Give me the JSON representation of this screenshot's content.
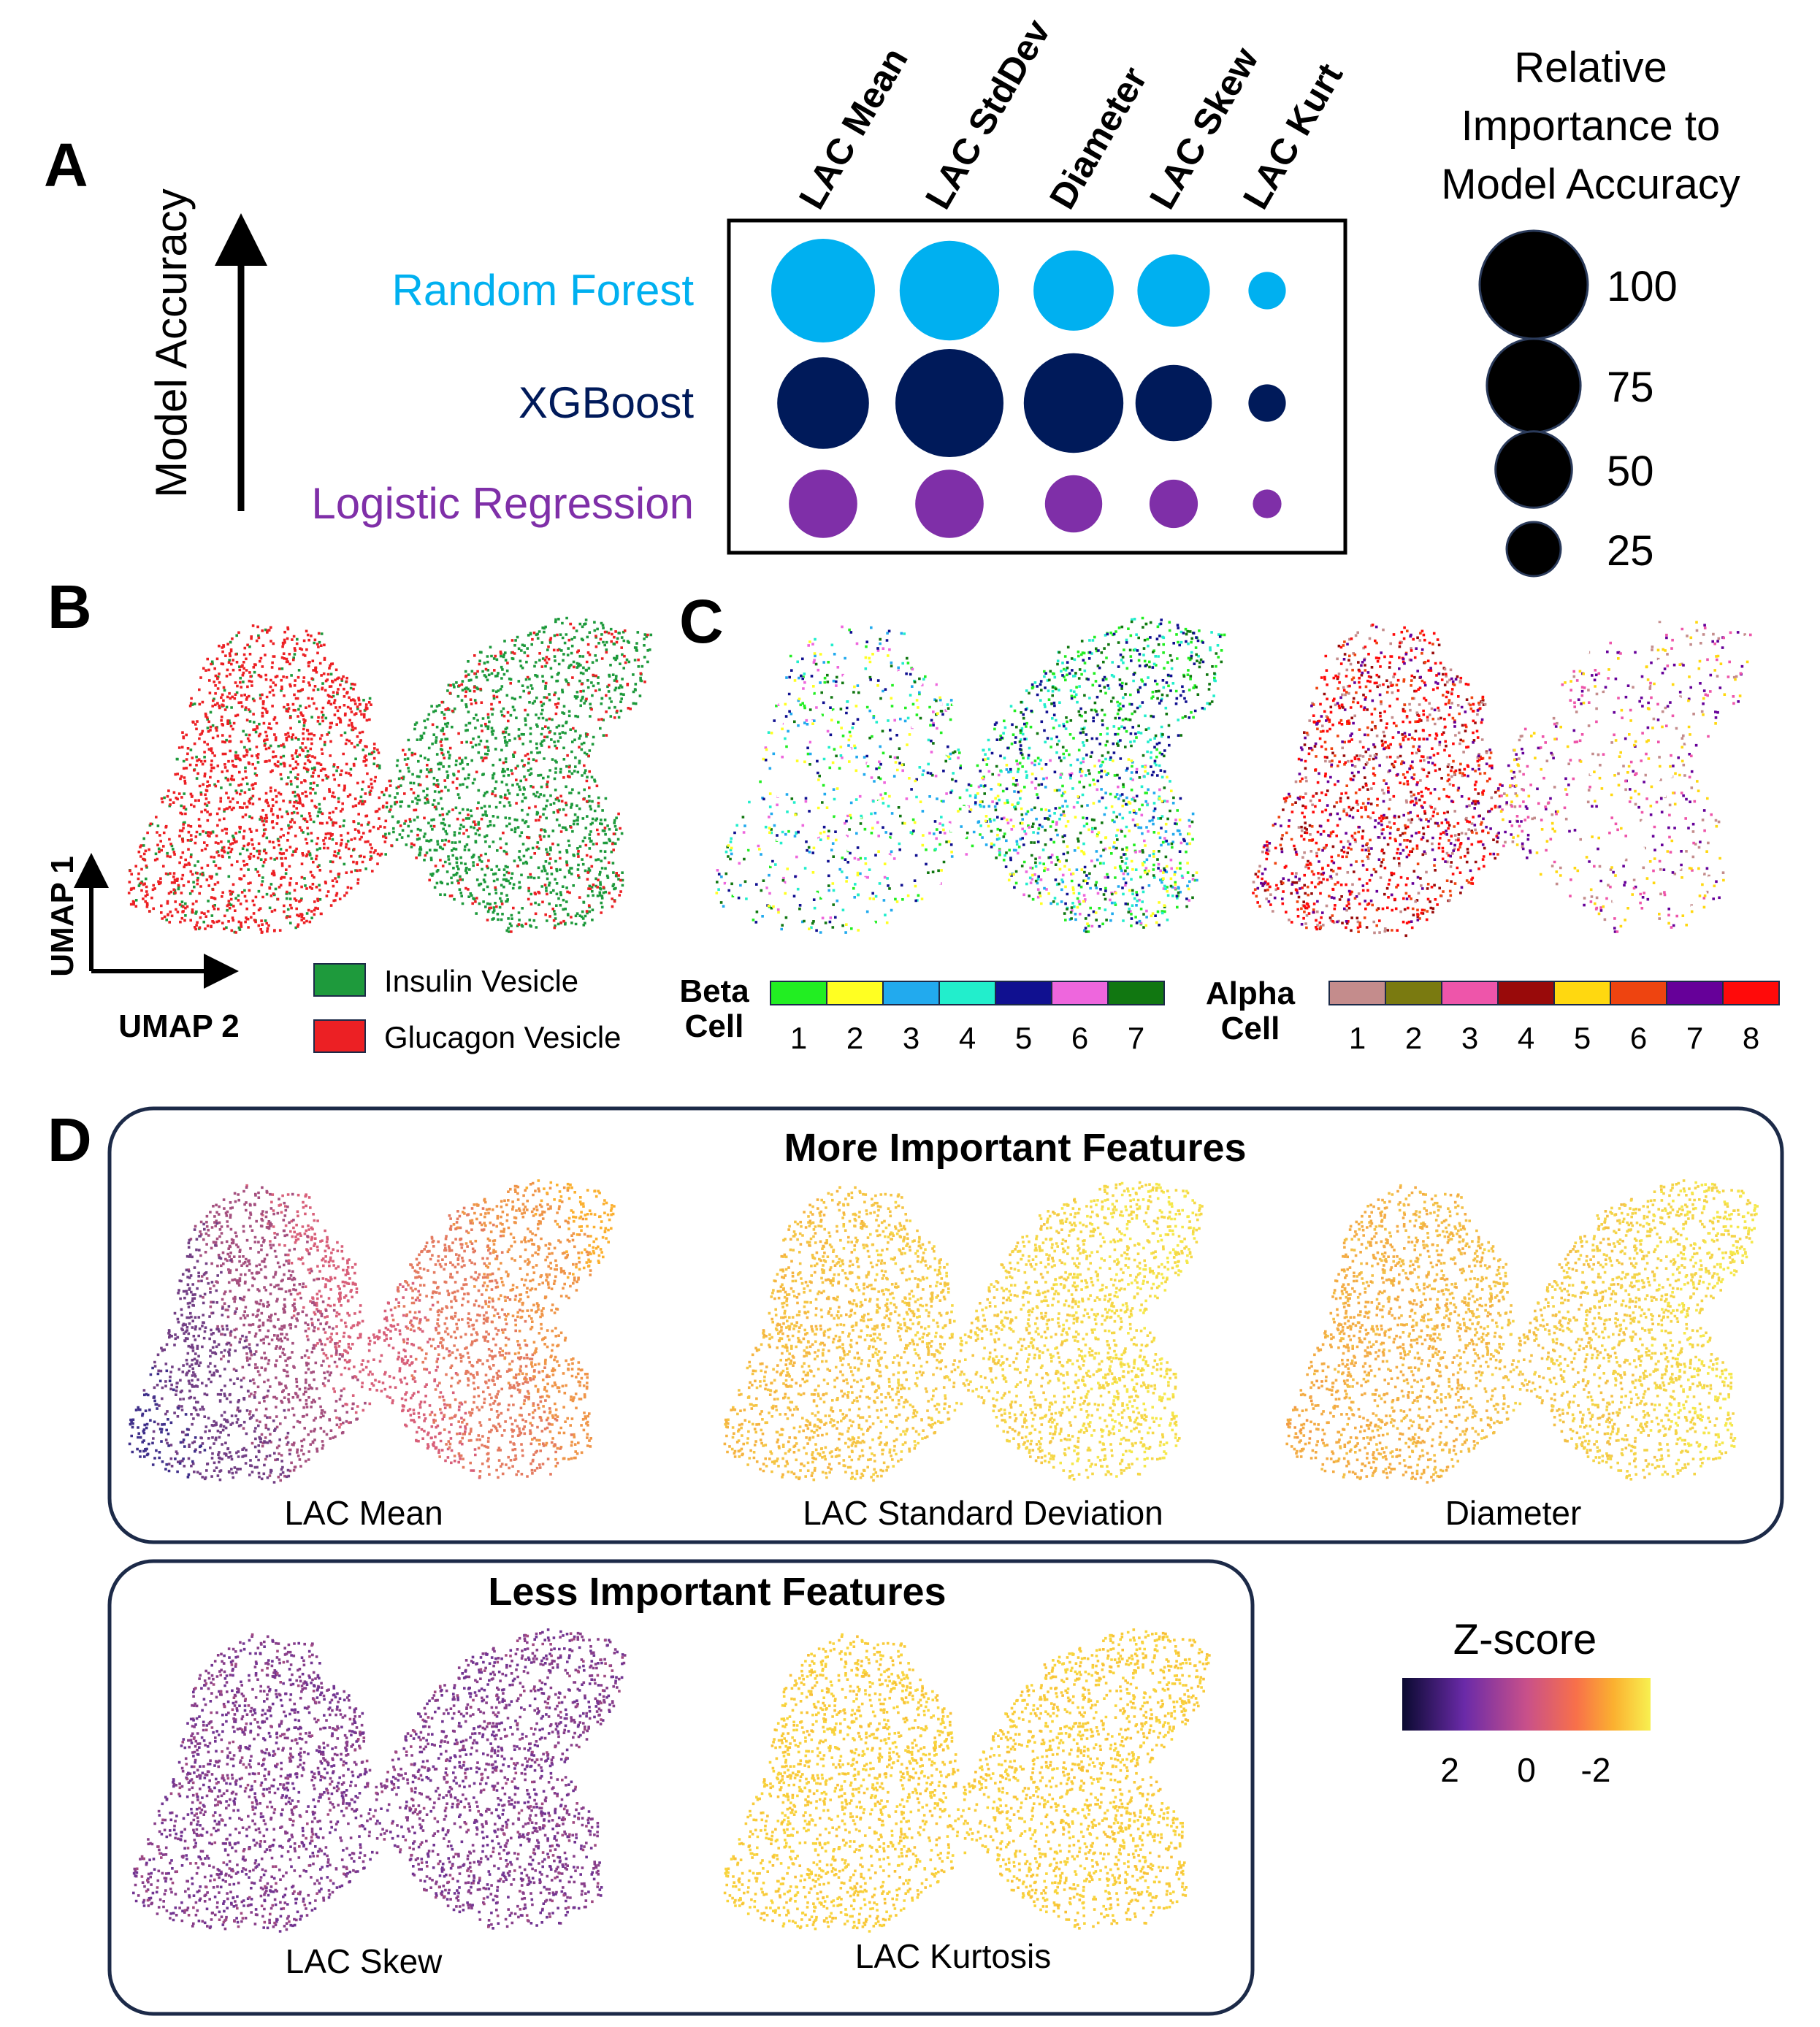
{
  "panels": {
    "a": "A",
    "b": "B",
    "c": "C",
    "d": "D"
  },
  "colors": {
    "random_forest": "#00b0f0",
    "xgboost": "#001a5a",
    "logistic_regression": "#7f2fa8",
    "insulin": "#1e9a3c",
    "glucagon": "#ec2024",
    "box_border": "#1c2a48"
  },
  "chart_data": [
    {
      "type": "bubble",
      "panel": "A",
      "title": "Relative Importance to Model Accuracy",
      "title_lines": [
        "Relative",
        "Importance to",
        "Model Accuracy"
      ],
      "ylabel": "Model Accuracy",
      "columns": [
        "LAC Mean",
        "LAC StdDev",
        "Diameter",
        "LAC Skew",
        "LAC Kurt"
      ],
      "rows": [
        "Random Forest",
        "XGBoost",
        "Logistic Regression"
      ],
      "series": [
        {
          "name": "Random Forest",
          "values": [
            92,
            85,
            55,
            45,
            12
          ]
        },
        {
          "name": "XGBoost",
          "values": [
            72,
            100,
            85,
            50,
            12
          ]
        },
        {
          "name": "Logistic Regression",
          "values": [
            40,
            40,
            28,
            20,
            7
          ]
        }
      ],
      "size_legend": [
        {
          "label": "100",
          "value": 100
        },
        {
          "label": "75",
          "value": 75
        },
        {
          "label": "50",
          "value": 50
        },
        {
          "label": "25",
          "value": 25
        }
      ]
    },
    {
      "type": "scatter",
      "panel": "B",
      "xlabel": "UMAP 2",
      "ylabel": "UMAP 1",
      "legend": [
        {
          "label": "Insulin Vesicle",
          "color": "#1e9a3c"
        },
        {
          "label": "Glucagon Vesicle",
          "color": "#ec2024"
        }
      ]
    },
    {
      "type": "scatter",
      "panel": "C",
      "legends": [
        {
          "title_lines": [
            "Beta",
            "Cell"
          ],
          "labels": [
            "1",
            "2",
            "3",
            "4",
            "5",
            "6",
            "7"
          ],
          "colors": [
            "#22ee22",
            "#ffff22",
            "#22aaee",
            "#22eecc",
            "#101090",
            "#ee66dd",
            "#117711"
          ]
        },
        {
          "title_lines": [
            "Alpha",
            "Cell"
          ],
          "labels": [
            "1",
            "2",
            "3",
            "4",
            "5",
            "6",
            "7",
            "8"
          ],
          "colors": [
            "#c48c8c",
            "#7a7a10",
            "#ee55aa",
            "#990a0a",
            "#ffd810",
            "#ee4410",
            "#660099",
            "#ff0a0a"
          ]
        }
      ]
    },
    {
      "type": "scatter",
      "panel": "D",
      "groups": [
        {
          "title": "More Important Features",
          "plots": [
            "LAC Mean",
            "LAC Standard Deviation",
            "Diameter"
          ]
        },
        {
          "title": "Less Important Features",
          "plots": [
            "LAC Skew",
            "LAC Kurtosis"
          ]
        }
      ],
      "colorbar": {
        "title": "Z-score",
        "ticks": [
          "2",
          "0",
          "-2"
        ],
        "colors": [
          "#0a0a30",
          "#6a2aa8",
          "#c8508a",
          "#f8704a",
          "#fbb030",
          "#f8f050"
        ]
      }
    }
  ]
}
